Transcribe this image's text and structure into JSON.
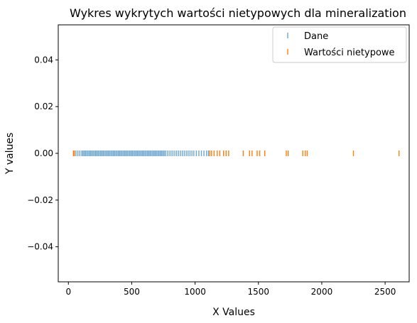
{
  "chart_data": {
    "type": "scatter",
    "title": "Wykres wykrytych wartości nietypowych dla mineralization",
    "xlabel": "X Values",
    "ylabel": "Y values",
    "xlim": [
      -80,
      2690
    ],
    "ylim": [
      -0.055,
      0.055
    ],
    "x_ticks": [
      0,
      500,
      1000,
      1500,
      2000,
      2500
    ],
    "x_tick_labels": [
      "0",
      "500",
      "1000",
      "1500",
      "2000",
      "2500"
    ],
    "y_ticks": [
      -0.04,
      -0.02,
      0.0,
      0.02,
      0.04
    ],
    "y_tick_labels": [
      "−0.04",
      "−0.02",
      "0.00",
      "0.02",
      "0.04"
    ],
    "grid": false,
    "legend_position": "top-right",
    "series": [
      {
        "name": "Dane",
        "color": "#1f77b4",
        "marker": "|",
        "y_constant": 0,
        "x": [
          60,
          75,
          90,
          105,
          115,
          125,
          135,
          145,
          155,
          165,
          175,
          185,
          195,
          205,
          215,
          225,
          235,
          245,
          255,
          265,
          275,
          285,
          295,
          305,
          315,
          325,
          335,
          345,
          355,
          365,
          375,
          385,
          395,
          405,
          415,
          425,
          435,
          445,
          455,
          465,
          475,
          485,
          495,
          505,
          515,
          525,
          535,
          545,
          555,
          565,
          575,
          585,
          595,
          605,
          615,
          625,
          635,
          645,
          655,
          665,
          675,
          685,
          695,
          705,
          715,
          725,
          735,
          745,
          755,
          765,
          780,
          795,
          810,
          825,
          840,
          855,
          870,
          885,
          900,
          915,
          930,
          945,
          960,
          975,
          990,
          1010,
          1030,
          1050,
          1070,
          1090,
          1105
        ]
      },
      {
        "name": "Wartości nietypowe",
        "color": "#ff7f0e",
        "marker": "|",
        "y_constant": 0,
        "x": [
          40,
          48,
          1115,
          1130,
          1150,
          1175,
          1195,
          1225,
          1245,
          1265,
          1380,
          1430,
          1450,
          1490,
          1510,
          1550,
          1720,
          1735,
          1850,
          1870,
          1885,
          2250,
          2610
        ]
      }
    ]
  }
}
